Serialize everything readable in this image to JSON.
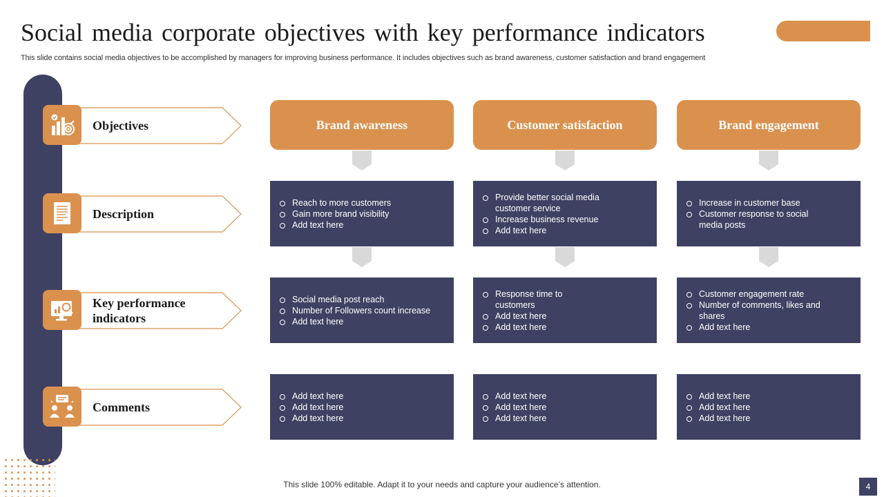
{
  "slide": {
    "title": "Social media corporate objectives with key performance indicators",
    "subtitle": "This slide contains social media objectives to be accomplished by managers for improving business performance. It includes objectives such as brand awareness, customer satisfaction and brand engagement",
    "footer": "This slide 100% editable. Adapt it to your needs and capture your audience’s attention.",
    "page_number": "4"
  },
  "colors": {
    "accent": "#DA914E",
    "navy": "#3F4163",
    "connector": "#D9D9D9"
  },
  "rows": [
    {
      "label": "Objectives",
      "icon": "target-chart-icon"
    },
    {
      "label": "Description",
      "icon": "document-icon"
    },
    {
      "label": "Key performance indicators",
      "icon": "monitor-analytics-icon"
    },
    {
      "label": "Comments",
      "icon": "chat-people-icon"
    }
  ],
  "columns": [
    {
      "header": "Brand awareness",
      "description": [
        "Reach to more customers",
        "Gain more brand visibility",
        "Add text here"
      ],
      "kpis": [
        "Social media post reach",
        "Number of Followers count increase",
        "Add text here"
      ],
      "comments": [
        "Add text here",
        "Add text here",
        "Add text here"
      ]
    },
    {
      "header": "Customer satisfaction",
      "description": [
        "Provide  better social media customer service",
        "Increase business revenue",
        "Add text here"
      ],
      "kpis": [
        "Response time to customers",
        "Add text here",
        "Add text here"
      ],
      "comments": [
        "Add text here",
        "Add text here",
        "Add text here"
      ]
    },
    {
      "header": "Brand engagement",
      "description": [
        "Increase in customer base",
        "Customer response to social media posts"
      ],
      "kpis": [
        "Customer engagement rate",
        "Number of comments, likes and shares",
        "Add text here"
      ],
      "comments": [
        "Add text here",
        "Add text here",
        "Add text here"
      ]
    }
  ]
}
